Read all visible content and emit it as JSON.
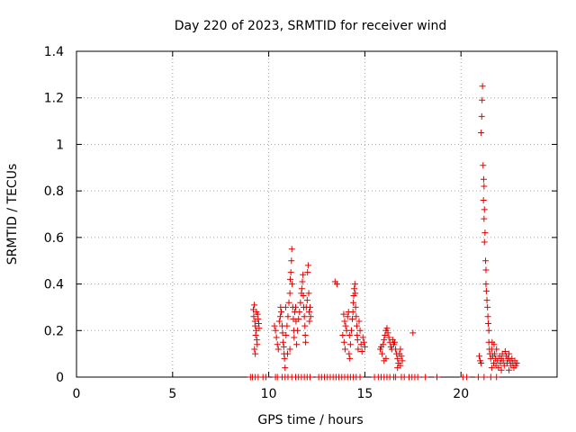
{
  "chart_data": {
    "type": "scatter",
    "title": "Day 220 of 2023, SRMTID for receiver wind",
    "xlabel": "GPS time / hours",
    "ylabel": "SRMTID / TECUs",
    "xlim": [
      0,
      25
    ],
    "ylim": [
      0,
      1.4
    ],
    "xticks": [
      0,
      5,
      10,
      15,
      20
    ],
    "xtick_labels": [
      "0",
      "5",
      "10",
      "15",
      "20"
    ],
    "yticks": [
      0,
      0.2,
      0.4,
      0.6,
      0.8,
      1.0,
      1.2,
      1.4
    ],
    "ytick_labels": [
      "0",
      "0.2",
      "0.4",
      "0.6",
      "0.8",
      "1",
      "1.2",
      "1.4"
    ],
    "grid": true,
    "marker": "+",
    "color": "#e00000",
    "series": [
      {
        "name": "SRMTID",
        "points": [
          [
            9.05,
            0
          ],
          [
            9.15,
            0
          ],
          [
            9.3,
            0
          ],
          [
            9.45,
            0
          ],
          [
            9.7,
            0
          ],
          [
            9.85,
            0
          ],
          [
            10.35,
            0
          ],
          [
            10.45,
            0
          ],
          [
            10.7,
            0
          ],
          [
            10.85,
            0
          ],
          [
            11.0,
            0
          ],
          [
            11.2,
            0
          ],
          [
            11.4,
            0
          ],
          [
            11.55,
            0
          ],
          [
            11.7,
            0
          ],
          [
            11.85,
            0
          ],
          [
            12.0,
            0
          ],
          [
            12.15,
            0
          ],
          [
            12.6,
            0
          ],
          [
            12.75,
            0
          ],
          [
            12.9,
            0
          ],
          [
            13.05,
            0
          ],
          [
            13.2,
            0
          ],
          [
            13.35,
            0
          ],
          [
            13.5,
            0
          ],
          [
            13.65,
            0
          ],
          [
            13.8,
            0
          ],
          [
            13.95,
            0
          ],
          [
            14.1,
            0
          ],
          [
            14.25,
            0
          ],
          [
            14.4,
            0
          ],
          [
            14.55,
            0
          ],
          [
            14.75,
            0
          ],
          [
            15.5,
            0
          ],
          [
            15.7,
            0
          ],
          [
            15.85,
            0
          ],
          [
            16.0,
            0
          ],
          [
            16.15,
            0
          ],
          [
            16.3,
            0
          ],
          [
            16.5,
            0
          ],
          [
            16.6,
            0
          ],
          [
            16.9,
            0
          ],
          [
            17.05,
            0
          ],
          [
            17.3,
            0
          ],
          [
            17.45,
            0
          ],
          [
            17.6,
            0
          ],
          [
            17.75,
            0
          ],
          [
            18.15,
            0
          ],
          [
            18.75,
            0
          ],
          [
            20.1,
            0
          ],
          [
            20.3,
            0
          ],
          [
            20.9,
            0
          ],
          [
            21.2,
            0
          ],
          [
            21.55,
            0
          ],
          [
            21.85,
            0
          ],
          [
            9.2,
            0.29
          ],
          [
            9.25,
            0.31
          ],
          [
            9.22,
            0.26
          ],
          [
            9.28,
            0.24
          ],
          [
            9.3,
            0.22
          ],
          [
            9.35,
            0.2
          ],
          [
            9.32,
            0.18
          ],
          [
            9.38,
            0.16
          ],
          [
            9.4,
            0.14
          ],
          [
            9.26,
            0.12
          ],
          [
            9.3,
            0.1
          ],
          [
            9.42,
            0.27
          ],
          [
            9.45,
            0.25
          ],
          [
            9.48,
            0.23
          ],
          [
            9.5,
            0.21
          ],
          [
            9.36,
            0.28
          ],
          [
            10.3,
            0.22
          ],
          [
            10.35,
            0.2
          ],
          [
            10.4,
            0.17
          ],
          [
            10.45,
            0.14
          ],
          [
            10.5,
            0.12
          ],
          [
            10.55,
            0.24
          ],
          [
            10.6,
            0.26
          ],
          [
            10.62,
            0.3
          ],
          [
            10.65,
            0.28
          ],
          [
            10.7,
            0.22
          ],
          [
            10.72,
            0.19
          ],
          [
            10.75,
            0.15
          ],
          [
            10.78,
            0.13
          ],
          [
            10.8,
            0.1
          ],
          [
            10.82,
            0.08
          ],
          [
            10.85,
            0.04
          ],
          [
            10.88,
            0.3
          ],
          [
            10.9,
            0.18
          ],
          [
            10.95,
            0.22
          ],
          [
            11.0,
            0.26
          ],
          [
            11.05,
            0.32
          ],
          [
            11.1,
            0.36
          ],
          [
            11.12,
            0.42
          ],
          [
            11.15,
            0.45
          ],
          [
            11.18,
            0.5
          ],
          [
            11.2,
            0.55
          ],
          [
            11.22,
            0.4
          ],
          [
            11.25,
            0.3
          ],
          [
            11.28,
            0.25
          ],
          [
            11.3,
            0.2
          ],
          [
            11.32,
            0.17
          ],
          [
            11.35,
            0.28
          ],
          [
            11.4,
            0.3
          ],
          [
            11.42,
            0.24
          ],
          [
            11.5,
            0.2
          ],
          [
            11.55,
            0.25
          ],
          [
            11.6,
            0.28
          ],
          [
            11.65,
            0.32
          ],
          [
            11.7,
            0.36
          ],
          [
            11.72,
            0.38
          ],
          [
            11.75,
            0.41
          ],
          [
            11.78,
            0.44
          ],
          [
            11.8,
            0.35
          ],
          [
            11.82,
            0.3
          ],
          [
            11.85,
            0.26
          ],
          [
            11.88,
            0.22
          ],
          [
            11.9,
            0.18
          ],
          [
            11.92,
            0.15
          ],
          [
            11.95,
            0.3
          ],
          [
            12.0,
            0.33
          ],
          [
            12.02,
            0.45
          ],
          [
            12.05,
            0.48
          ],
          [
            12.08,
            0.36
          ],
          [
            12.1,
            0.28
          ],
          [
            12.12,
            0.24
          ],
          [
            12.15,
            0.3
          ],
          [
            12.18,
            0.26
          ],
          [
            11.1,
            0.12
          ],
          [
            11.45,
            0.14
          ],
          [
            10.98,
            0.1
          ],
          [
            13.45,
            0.41
          ],
          [
            13.55,
            0.4
          ],
          [
            13.9,
            0.27
          ],
          [
            13.95,
            0.24
          ],
          [
            14.0,
            0.22
          ],
          [
            13.85,
            0.18
          ],
          [
            13.92,
            0.15
          ],
          [
            13.97,
            0.12
          ],
          [
            14.05,
            0.2
          ],
          [
            14.1,
            0.26
          ],
          [
            14.15,
            0.28
          ],
          [
            14.2,
            0.18
          ],
          [
            14.25,
            0.14
          ],
          [
            14.18,
            0.1
          ],
          [
            14.22,
            0.08
          ],
          [
            14.3,
            0.2
          ],
          [
            14.35,
            0.25
          ],
          [
            14.38,
            0.28
          ],
          [
            14.4,
            0.32
          ],
          [
            14.42,
            0.35
          ],
          [
            14.45,
            0.38
          ],
          [
            14.48,
            0.4
          ],
          [
            14.5,
            0.36
          ],
          [
            14.52,
            0.3
          ],
          [
            14.55,
            0.26
          ],
          [
            14.58,
            0.22
          ],
          [
            14.6,
            0.18
          ],
          [
            14.62,
            0.16
          ],
          [
            14.65,
            0.12
          ],
          [
            14.7,
            0.24
          ],
          [
            14.75,
            0.2
          ],
          [
            14.8,
            0.14
          ],
          [
            14.85,
            0.11
          ],
          [
            14.9,
            0.17
          ],
          [
            14.95,
            0.15
          ],
          [
            15.0,
            0.13
          ],
          [
            15.8,
            0.12
          ],
          [
            15.85,
            0.13
          ],
          [
            15.9,
            0.1
          ],
          [
            15.95,
            0.14
          ],
          [
            16.0,
            0.16
          ],
          [
            16.05,
            0.18
          ],
          [
            16.1,
            0.2
          ],
          [
            16.15,
            0.21
          ],
          [
            16.2,
            0.19
          ],
          [
            16.25,
            0.17
          ],
          [
            16.3,
            0.15
          ],
          [
            16.35,
            0.13
          ],
          [
            16.4,
            0.12
          ],
          [
            16.45,
            0.16
          ],
          [
            16.5,
            0.14
          ],
          [
            16.55,
            0.15
          ],
          [
            16.1,
            0.08
          ],
          [
            16.0,
            0.07
          ],
          [
            16.6,
            0.12
          ],
          [
            16.65,
            0.1
          ],
          [
            16.7,
            0.08
          ],
          [
            16.75,
            0.06
          ],
          [
            16.8,
            0.1
          ],
          [
            16.85,
            0.12
          ],
          [
            16.9,
            0.09
          ],
          [
            16.95,
            0.07
          ],
          [
            16.7,
            0.04
          ],
          [
            16.85,
            0.05
          ],
          [
            17.5,
            0.19
          ],
          [
            20.95,
            0.09
          ],
          [
            21.0,
            0.07
          ],
          [
            21.05,
            0.06
          ],
          [
            21.05,
            1.05
          ],
          [
            21.08,
            1.12
          ],
          [
            21.1,
            1.19
          ],
          [
            21.12,
            1.25
          ],
          [
            21.15,
            0.91
          ],
          [
            21.18,
            0.85
          ],
          [
            21.2,
            0.82
          ],
          [
            21.17,
            0.76
          ],
          [
            21.22,
            0.72
          ],
          [
            21.2,
            0.68
          ],
          [
            21.25,
            0.62
          ],
          [
            21.22,
            0.58
          ],
          [
            21.28,
            0.5
          ],
          [
            21.3,
            0.46
          ],
          [
            21.3,
            0.4
          ],
          [
            21.32,
            0.37
          ],
          [
            21.35,
            0.33
          ],
          [
            21.38,
            0.3
          ],
          [
            21.4,
            0.26
          ],
          [
            21.42,
            0.23
          ],
          [
            21.45,
            0.2
          ],
          [
            21.45,
            0.15
          ],
          [
            21.48,
            0.12
          ],
          [
            21.5,
            0.1
          ],
          [
            21.55,
            0.08
          ],
          [
            21.6,
            0.12
          ],
          [
            21.62,
            0.15
          ],
          [
            21.65,
            0.09
          ],
          [
            21.7,
            0.06
          ],
          [
            21.72,
            0.14
          ],
          [
            21.75,
            0.1
          ],
          [
            21.8,
            0.08
          ],
          [
            21.82,
            0.05
          ],
          [
            21.85,
            0.12
          ],
          [
            21.9,
            0.07
          ],
          [
            21.95,
            0.04
          ],
          [
            22.0,
            0.09
          ],
          [
            22.05,
            0.06
          ],
          [
            22.1,
            0.08
          ],
          [
            22.15,
            0.1
          ],
          [
            22.2,
            0.07
          ],
          [
            22.25,
            0.05
          ],
          [
            22.3,
            0.11
          ],
          [
            22.35,
            0.09
          ],
          [
            22.4,
            0.06
          ],
          [
            22.45,
            0.08
          ],
          [
            22.5,
            0.1
          ],
          [
            22.55,
            0.07
          ],
          [
            22.6,
            0.05
          ],
          [
            22.65,
            0.08
          ],
          [
            22.7,
            0.06
          ],
          [
            22.75,
            0.04
          ],
          [
            22.8,
            0.07
          ],
          [
            22.85,
            0.05
          ],
          [
            22.9,
            0.06
          ],
          [
            21.6,
            0.04
          ],
          [
            22.1,
            0.03
          ],
          [
            22.5,
            0.03
          ]
        ]
      }
    ]
  }
}
